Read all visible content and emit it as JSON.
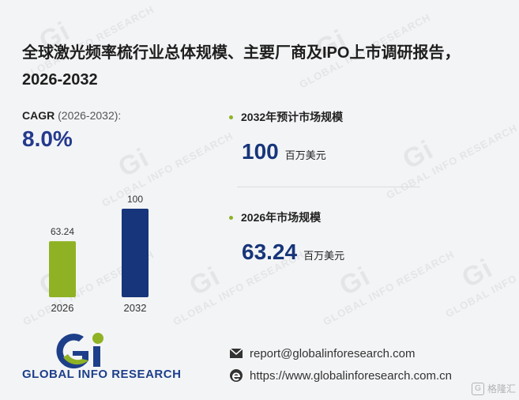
{
  "title": "全球激光频率梳行业总体规模、主要厂商及IPO上市调研报告，2026-2032",
  "cagr": {
    "label": "CAGR",
    "period": "(2026-2032):",
    "value": "8.0%"
  },
  "stats": [
    {
      "heading": "2032年预计市场规模",
      "value": "100",
      "unit": "百万美元"
    },
    {
      "heading": "2026年市场规模",
      "value": "63.24",
      "unit": "百万美元"
    }
  ],
  "chart_data": {
    "type": "bar",
    "categories": [
      "2026",
      "2032"
    ],
    "values": [
      63.24,
      100
    ],
    "value_labels": [
      "63.24",
      "100"
    ],
    "colors": [
      "#8fb224",
      "#17357a"
    ],
    "ylim": [
      0,
      100
    ]
  },
  "brand": {
    "name": "GLOBAL INFO RESEARCH",
    "watermark": "GLOBAL INFO RESEARCH"
  },
  "contact": {
    "email": "report@globalinforesearch.com",
    "website": "https://www.globalinforesearch.com.cn"
  },
  "badge": "格隆汇",
  "icons": {
    "email": "envelope-icon",
    "web": "edge-browser-icon"
  }
}
